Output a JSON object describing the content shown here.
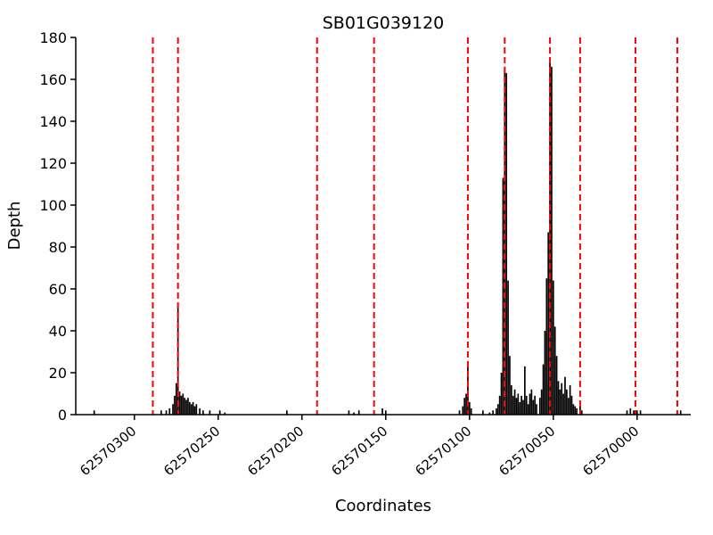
{
  "figure": {
    "background": "#ffffff"
  },
  "chart_data": {
    "type": "bar",
    "title": "SB01G039120",
    "xlabel": "Coordinates",
    "ylabel": "Depth",
    "x_axis_reversed": true,
    "xlim": [
      62570335,
      62569968
    ],
    "ylim": [
      0,
      180
    ],
    "x_ticks": [
      "62570300",
      "62570250",
      "62570200",
      "62570150",
      "62570100",
      "62570050",
      "62570000"
    ],
    "y_ticks": [
      0,
      20,
      40,
      60,
      80,
      100,
      120,
      140,
      160,
      180
    ],
    "grid": false,
    "legend": null,
    "bar_color": "#000000",
    "vline_color": "#ff0000",
    "vline_style": "dashed",
    "vlines": [
      62570289,
      62570274,
      62570191,
      62570157,
      62570101,
      62570079,
      62570052,
      62570034,
      62570001,
      62569976
    ],
    "bars": [
      [
        62570324,
        2
      ],
      [
        62570284,
        2
      ],
      [
        62570281,
        2
      ],
      [
        62570279,
        3
      ],
      [
        62570277,
        5
      ],
      [
        62570276,
        9
      ],
      [
        62570275,
        15
      ],
      [
        62570274,
        52
      ],
      [
        62570273,
        11
      ],
      [
        62570272,
        9
      ],
      [
        62570271,
        10
      ],
      [
        62570270,
        8
      ],
      [
        62570269,
        7
      ],
      [
        62570268,
        8
      ],
      [
        62570267,
        6
      ],
      [
        62570266,
        5
      ],
      [
        62570265,
        6
      ],
      [
        62570264,
        4
      ],
      [
        62570263,
        5
      ],
      [
        62570261,
        3
      ],
      [
        62570259,
        2
      ],
      [
        62570255,
        2
      ],
      [
        62570249,
        2
      ],
      [
        62570246,
        1
      ],
      [
        62570209,
        2
      ],
      [
        62570172,
        2
      ],
      [
        62570169,
        1
      ],
      [
        62570166,
        2
      ],
      [
        62570152,
        3
      ],
      [
        62570150,
        2
      ],
      [
        62570106,
        2
      ],
      [
        62570104,
        4
      ],
      [
        62570103,
        8
      ],
      [
        62570102,
        10
      ],
      [
        62570101,
        23
      ],
      [
        62570100,
        6
      ],
      [
        62570099,
        3
      ],
      [
        62570092,
        2
      ],
      [
        62570088,
        1
      ],
      [
        62570086,
        2
      ],
      [
        62570084,
        3
      ],
      [
        62570083,
        5
      ],
      [
        62570082,
        9
      ],
      [
        62570081,
        20
      ],
      [
        62570080,
        113
      ],
      [
        62570079,
        166
      ],
      [
        62570078,
        163
      ],
      [
        62570077,
        64
      ],
      [
        62570076,
        28
      ],
      [
        62570075,
        14
      ],
      [
        62570074,
        9
      ],
      [
        62570073,
        12
      ],
      [
        62570072,
        8
      ],
      [
        62570071,
        10
      ],
      [
        62570070,
        6
      ],
      [
        62570069,
        9
      ],
      [
        62570068,
        7
      ],
      [
        62570067,
        23
      ],
      [
        62570066,
        9
      ],
      [
        62570065,
        5
      ],
      [
        62570064,
        10
      ],
      [
        62570063,
        12
      ],
      [
        62570062,
        7
      ],
      [
        62570061,
        9
      ],
      [
        62570060,
        5
      ],
      [
        62570058,
        8
      ],
      [
        62570057,
        12
      ],
      [
        62570056,
        24
      ],
      [
        62570055,
        40
      ],
      [
        62570054,
        65
      ],
      [
        62570053,
        87
      ],
      [
        62570052,
        168
      ],
      [
        62570051,
        166
      ],
      [
        62570050,
        64
      ],
      [
        62570049,
        42
      ],
      [
        62570048,
        28
      ],
      [
        62570047,
        16
      ],
      [
        62570046,
        12
      ],
      [
        62570045,
        15
      ],
      [
        62570044,
        10
      ],
      [
        62570043,
        18
      ],
      [
        62570042,
        12
      ],
      [
        62570041,
        8
      ],
      [
        62570040,
        14
      ],
      [
        62570039,
        9
      ],
      [
        62570038,
        5
      ],
      [
        62570037,
        4
      ],
      [
        62570036,
        3
      ],
      [
        62570034,
        4
      ],
      [
        62570033,
        2
      ],
      [
        62570006,
        2
      ],
      [
        62570004,
        3
      ],
      [
        62570002,
        2
      ],
      [
        62570000,
        2
      ],
      [
        62569998,
        2
      ],
      [
        62569974,
        2
      ]
    ]
  }
}
